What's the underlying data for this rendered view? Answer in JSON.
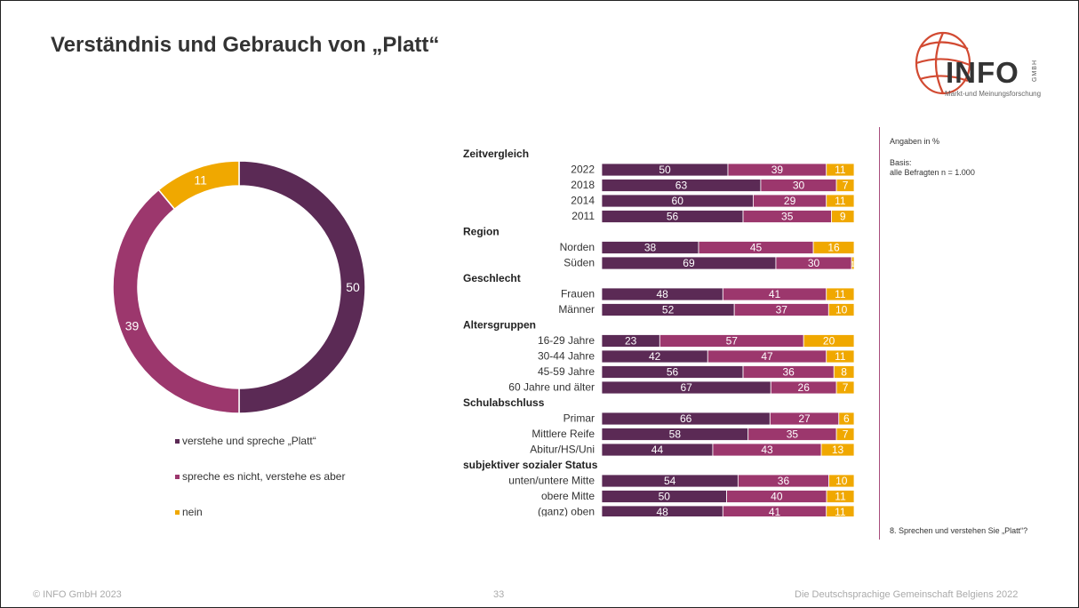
{
  "page": {
    "title": "Verständnis und Gebrauch von „Platt“",
    "logo": {
      "word": "INFO",
      "gmbh": "GMBH",
      "tagline": "Markt-und Meinungsforschung"
    },
    "notes": {
      "unit": "Angaben in %",
      "basis_label": "Basis:",
      "basis_value": "alle Befragten  n = 1.000",
      "question": "8. Sprechen und verstehen Sie „Platt“?"
    },
    "footer": {
      "copyright": "© INFO GmbH 2023",
      "page_number": "33",
      "study": "Die Deutschsprachige Gemeinschaft Belgiens 2022"
    }
  },
  "colors": {
    "series1": "#5b2a55",
    "series2": "#9c376d",
    "series3": "#f0a800"
  },
  "chart_data": [
    {
      "type": "pie",
      "variant": "donut",
      "title": "",
      "labels": [
        "verstehe und spreche „Platt“",
        "spreche es nicht, verstehe es aber",
        "nein"
      ],
      "values": [
        50,
        39,
        11
      ],
      "legend_position": "bottom"
    },
    {
      "type": "bar",
      "orientation": "horizontal",
      "stacked": true,
      "percent_scale": 100,
      "title": "",
      "series_names": [
        "verstehe und spreche „Platt“",
        "spreche es nicht, verstehe es aber",
        "nein"
      ],
      "groups": [
        {
          "label": "Zeitvergleich",
          "rows": [
            {
              "label": "2022",
              "values": [
                50,
                39,
                11
              ]
            },
            {
              "label": "2018",
              "values": [
                63,
                30,
                7
              ]
            },
            {
              "label": "2014",
              "values": [
                60,
                29,
                11
              ]
            },
            {
              "label": "2011",
              "values": [
                56,
                35,
                9
              ]
            }
          ]
        },
        {
          "label": "Region",
          "rows": [
            {
              "label": "Norden",
              "values": [
                38,
                45,
                16
              ]
            },
            {
              "label": "Süden",
              "values": [
                69,
                30,
                1
              ]
            }
          ]
        },
        {
          "label": "Geschlecht",
          "rows": [
            {
              "label": "Frauen",
              "values": [
                48,
                41,
                11
              ]
            },
            {
              "label": "Männer",
              "values": [
                52,
                37,
                10
              ]
            }
          ]
        },
        {
          "label": "Altersgruppen",
          "rows": [
            {
              "label": "16-29 Jahre",
              "values": [
                23,
                57,
                20
              ]
            },
            {
              "label": "30-44 Jahre",
              "values": [
                42,
                47,
                11
              ]
            },
            {
              "label": "45-59 Jahre",
              "values": [
                56,
                36,
                8
              ]
            },
            {
              "label": "60 Jahre und älter",
              "values": [
                67,
                26,
                7
              ]
            }
          ]
        },
        {
          "label": "Schulabschluss",
          "rows": [
            {
              "label": "Primar",
              "values": [
                66,
                27,
                6
              ]
            },
            {
              "label": "Mittlere Reife",
              "values": [
                58,
                35,
                7
              ]
            },
            {
              "label": "Abitur/HS/Uni",
              "values": [
                44,
                43,
                13
              ]
            }
          ]
        },
        {
          "label": "subjektiver sozialer Status",
          "rows": [
            {
              "label": "unten/untere Mitte",
              "values": [
                54,
                36,
                10
              ]
            },
            {
              "label": "obere Mitte",
              "values": [
                50,
                40,
                11
              ]
            },
            {
              "label": "(ganz) oben",
              "values": [
                48,
                41,
                11
              ]
            }
          ]
        }
      ]
    }
  ]
}
